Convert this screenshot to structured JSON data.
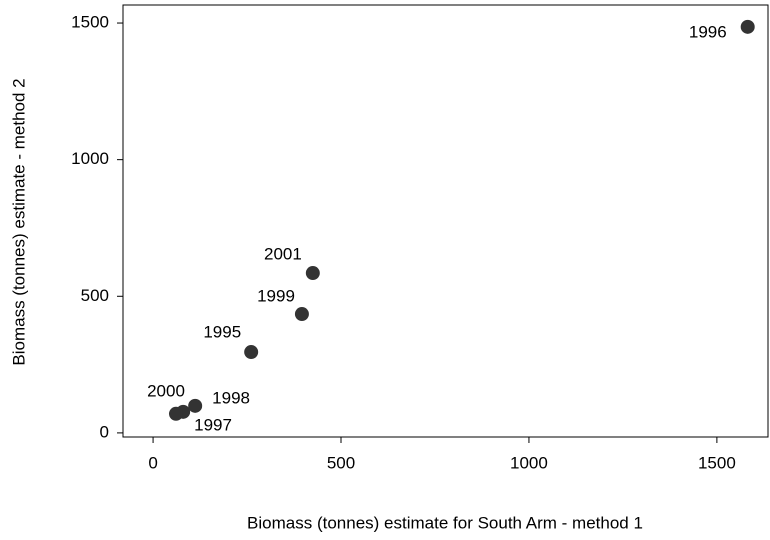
{
  "chart_data": {
    "type": "scatter",
    "x_label": "Biomass (tonnes) estimate for South Arm - method 1",
    "y_label": "Biomass (tonnes) estimate - method 2",
    "series": [
      {
        "color": "#333333",
        "labels": [
          "1995",
          "1996",
          "1997",
          "1998",
          "1999",
          "2000",
          "2001"
        ],
        "x": [
          261,
          1582,
          80,
          112,
          396,
          61,
          425
        ],
        "values": [
          296,
          1486,
          77,
          99,
          435,
          70,
          585
        ]
      }
    ],
    "xlim": [
      -80,
      1636
    ],
    "ylim": [
      -15,
      1566
    ],
    "xticks": [
      0,
      500,
      1000,
      1500
    ],
    "yticks": [
      0,
      500,
      1000,
      1500
    ],
    "grid": false
  }
}
